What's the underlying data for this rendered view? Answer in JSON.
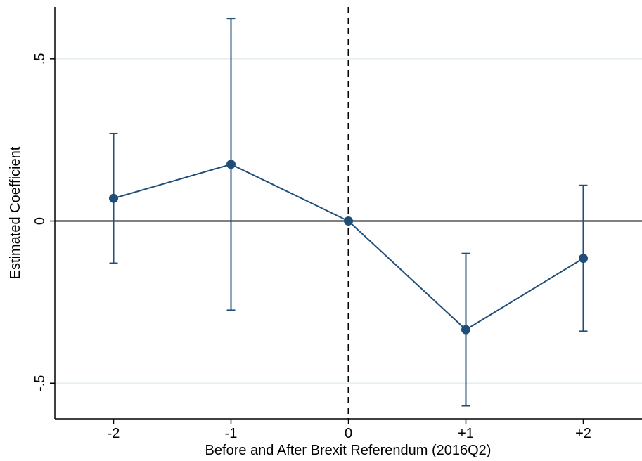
{
  "chart_data": {
    "type": "line",
    "title": "",
    "xlabel": "Before and After Brexit Referendum (2016Q2)",
    "ylabel": "Estimated Coefficient",
    "categories": [
      "-2",
      "-1",
      "0",
      "+1",
      "+2"
    ],
    "x": [
      -2,
      -1,
      0,
      1,
      2
    ],
    "series": [
      {
        "estimate": [
          0.07,
          0.175,
          0.0,
          -0.335,
          -0.115
        ],
        "ci_lower": [
          -0.13,
          -0.275,
          0.0,
          -0.57,
          -0.34
        ],
        "ci_upper": [
          0.27,
          0.625,
          0.0,
          -0.1,
          0.11
        ]
      }
    ],
    "yticks": [
      {
        "value": -0.5,
        "label": "-.5"
      },
      {
        "value": 0,
        "label": "0"
      },
      {
        "value": 0.5,
        "label": ".5"
      }
    ],
    "xlim": [
      -2.5,
      2.5
    ],
    "ylim": [
      -0.61,
      0.66
    ],
    "reference_lines": {
      "horizontal_y": 0,
      "vertical_x": 0,
      "vertical_style": "dashed"
    },
    "grid": "horizontal",
    "colors": {
      "series": "#1f4e79",
      "grid": "#e3eef0",
      "axis": "#000000"
    }
  }
}
